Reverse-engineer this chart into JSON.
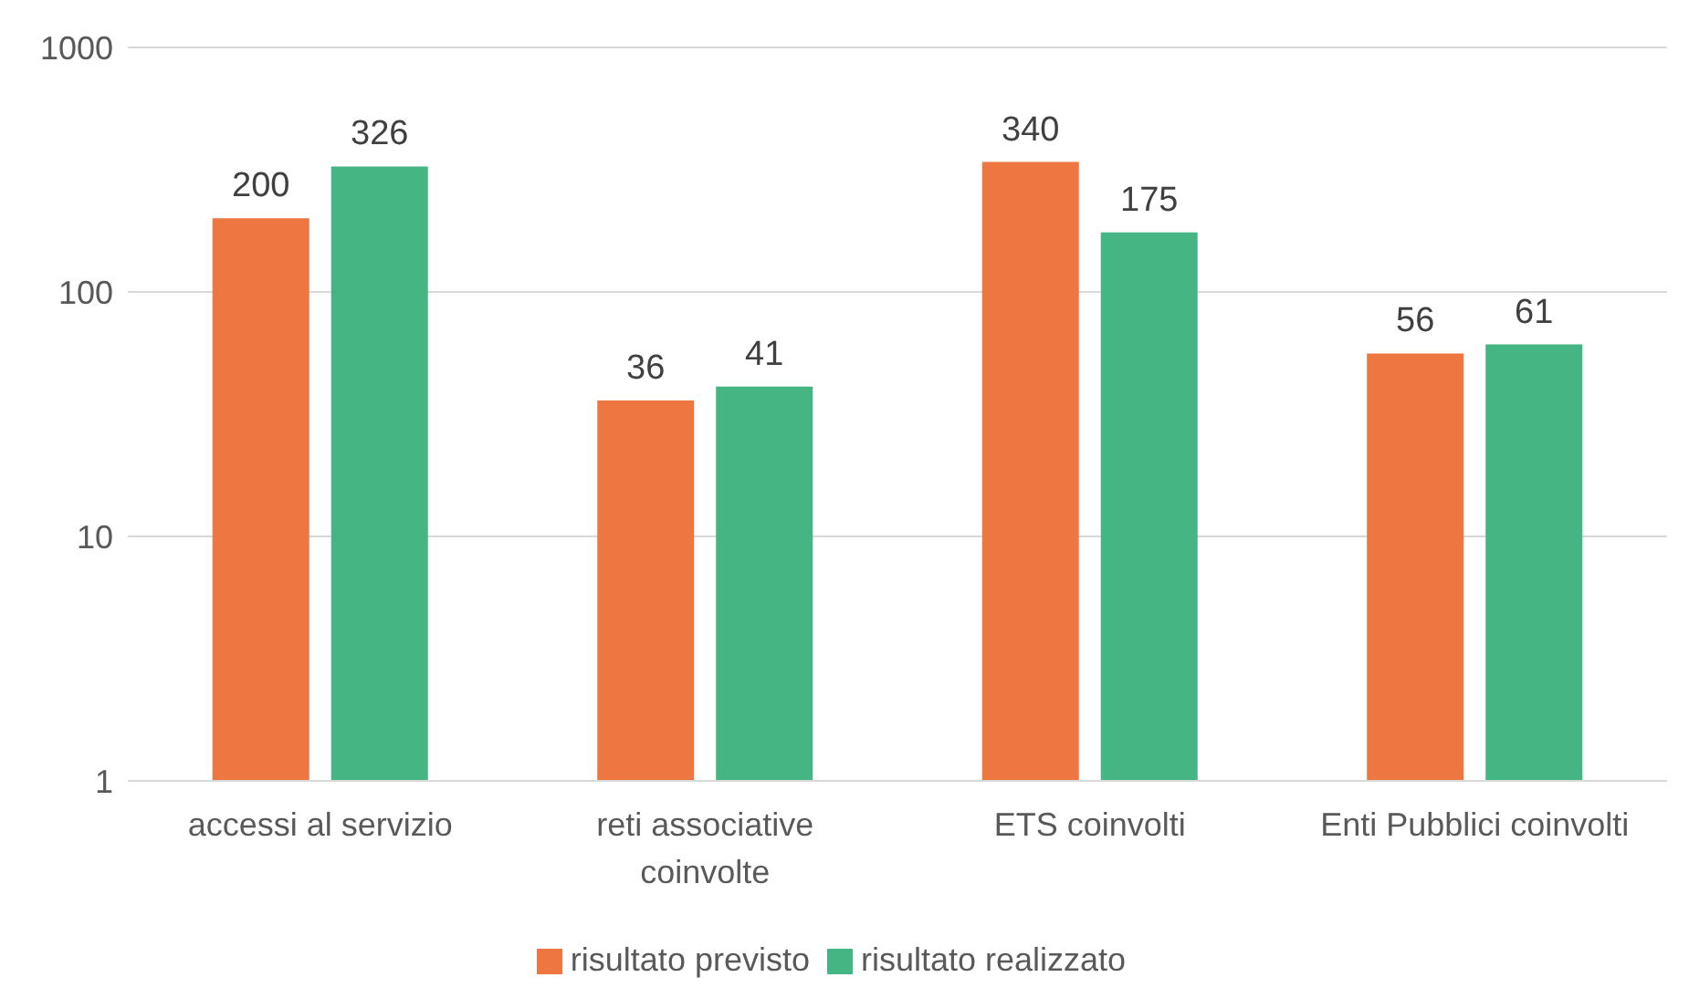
{
  "chart_data": {
    "type": "bar",
    "categories": [
      "accessi al servizio",
      "reti associative coinvolte",
      "ETS coinvolti",
      "Enti Pubblici coinvolti"
    ],
    "series": [
      {
        "name": "risultato previsto",
        "color": "#ee7640",
        "values": [
          200,
          36,
          340,
          56
        ]
      },
      {
        "name": "risultato realizzato",
        "color": "#44b583",
        "values": [
          326,
          41,
          175,
          61
        ]
      }
    ],
    "log": "y",
    "ylim": [
      1,
      1000
    ],
    "yticks": [
      1,
      10,
      100,
      1000
    ],
    "grid": "y",
    "legend": "bottom",
    "data_labels": true
  }
}
